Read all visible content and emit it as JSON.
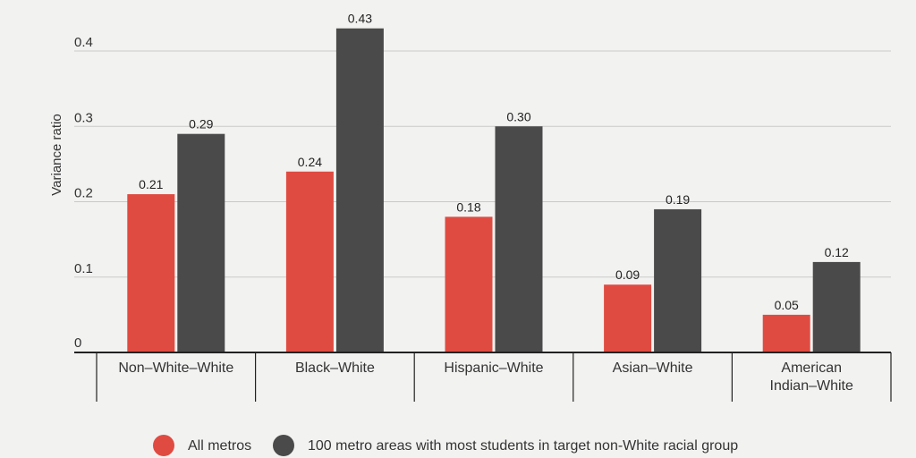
{
  "chart_data": {
    "type": "bar",
    "ylabel": "Variance ratio",
    "ylim": [
      0,
      0.45
    ],
    "yticks": [
      0,
      0.1,
      0.2,
      0.3,
      0.4
    ],
    "ytick_labels": [
      "0",
      "0.1",
      "0.2",
      "0.3",
      "0.4"
    ],
    "grid": true,
    "legend_position": "bottom-center",
    "categories": [
      [
        "Non–White–White"
      ],
      [
        "Black–White"
      ],
      [
        "Hispanic–White"
      ],
      [
        "Asian–White"
      ],
      [
        "American",
        "Indian–White"
      ]
    ],
    "series": [
      {
        "name": "All metros",
        "color": "#e04b41",
        "values": [
          0.21,
          0.24,
          0.18,
          0.09,
          0.05
        ],
        "labels": [
          "0.21",
          "0.24",
          "0.18",
          "0.09",
          "0.05"
        ]
      },
      {
        "name": "100 metro areas with most students in target non-White racial group",
        "color": "#4a4a4a",
        "values": [
          0.29,
          0.43,
          0.3,
          0.19,
          0.12
        ],
        "labels": [
          "0.29",
          "0.43",
          "0.30",
          "0.19",
          "0.12"
        ]
      }
    ]
  }
}
